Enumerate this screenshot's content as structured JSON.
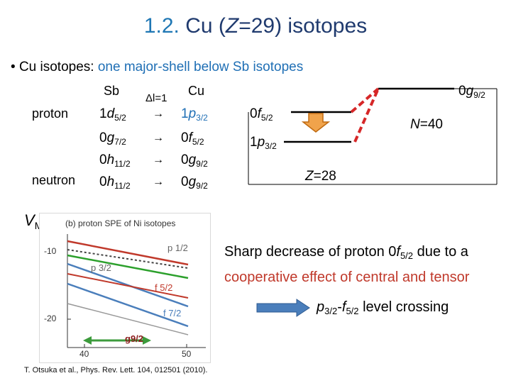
{
  "title": {
    "number": "1.2.",
    "text_pre": "Cu (",
    "text_Z": "Z",
    "text_post": "=29) isotopes"
  },
  "bullet": {
    "symbol": "•",
    "lead": "Cu isotopes:",
    "highlight": "one major-shell below Sb isotopes"
  },
  "table": {
    "col_sb": "Sb",
    "col_dl": "Δl=1",
    "col_cu": "Cu",
    "row_proton": "proton",
    "row_neutron": "neutron",
    "arrow": "→",
    "rows": [
      {
        "sb_n": "1",
        "sb_l": "d",
        "sb_j": "5/2",
        "cu_n": "1",
        "cu_l": "p",
        "cu_j": "3/2",
        "color": "#1f6fb5"
      },
      {
        "sb_n": "0",
        "sb_l": "g",
        "sb_j": "7/2",
        "cu_n": "0",
        "cu_l": "f",
        "cu_j": "5/2",
        "color": "#000000"
      },
      {
        "sb_n": "0",
        "sb_l": "h",
        "sb_j": "11/2",
        "cu_n": "0",
        "cu_l": "g",
        "cu_j": "9/2",
        "color": "#000000"
      },
      {
        "sb_n": "0",
        "sb_l": "h",
        "sb_j": "11/2",
        "cu_n": "0",
        "cu_l": "g",
        "cu_j": "9/2",
        "color": "#000000"
      }
    ]
  },
  "levels": {
    "g92": {
      "n": "0",
      "l": "g",
      "j": "9/2"
    },
    "f52": {
      "n": "0",
      "l": "f",
      "j": "5/2"
    },
    "p32": {
      "n": "1",
      "l": "p",
      "j": "3/2"
    },
    "n40_var": "N",
    "n40_val": "=40",
    "z28_var": "Z",
    "z28_val": "=28"
  },
  "vmu": {
    "base": "V",
    "sub": "MU"
  },
  "plot": {
    "panel_title": "(b) proton SPE of Ni isotopes",
    "yticks": [
      "-10",
      "-20"
    ],
    "xticks": [
      "40",
      "50"
    ],
    "labels": {
      "p12": "p 1/2",
      "p32": "p 3/2",
      "f52": "f 5/2",
      "f72": "f 7/2",
      "g92": "g9/2"
    }
  },
  "note": {
    "line1_pre": "Sharp decrease of proton 0",
    "line1_l": "f",
    "line1_sub": "5/2",
    "line1_post": " due to a",
    "line2": "cooperative effect of central and tensor"
  },
  "crossing": {
    "a_l": "p",
    "a_sub": "3/2",
    "dash": "-",
    "b_l": "f",
    "b_sub": "5/2",
    "text": " level crossing"
  },
  "citation": "T. Otsuka et al., Phys. Rev. Lett. 104, 012501 (2010)."
}
